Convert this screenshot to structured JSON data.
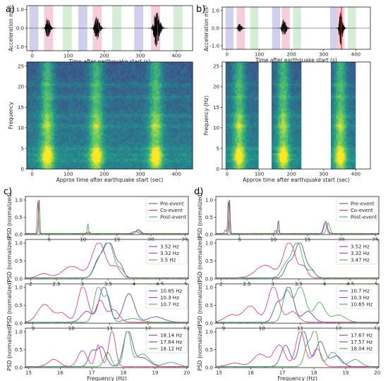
{
  "panels": {
    "a": "a)",
    "b": "b)",
    "c": "c)",
    "d": "d)"
  },
  "colors": {
    "pre": "#4040c0",
    "co": "#e0306a",
    "post": "#3aa83a",
    "pre_band": "#c8c8ea",
    "co_band": "#f4c4d4",
    "post_band": "#cdeacd",
    "vline": "#cc1111"
  },
  "chart_data": [
    {
      "id": "a-wave",
      "type": "line",
      "xlabel": "Time after earthquake start (s)",
      "ylabel": "Acceleration m/s²",
      "xlim": [
        -15,
        445
      ],
      "ylim": [
        -1.2,
        1.2
      ],
      "xticks": [
        0,
        100,
        200,
        300,
        400
      ],
      "yticks": [
        -1,
        0,
        1
      ],
      "windows": [
        {
          "kind": "pre",
          "x0": -8,
          "x1": 17
        },
        {
          "kind": "co",
          "x0": 33,
          "x1": 58
        },
        {
          "kind": "post",
          "x0": 85,
          "x1": 110
        },
        {
          "kind": "pre",
          "x0": 128,
          "x1": 153
        },
        {
          "kind": "co",
          "x0": 168,
          "x1": 193
        },
        {
          "kind": "post",
          "x0": 222,
          "x1": 247
        },
        {
          "kind": "pre",
          "x0": 283,
          "x1": 308
        },
        {
          "kind": "co",
          "x0": 330,
          "x1": 355
        },
        {
          "kind": "post",
          "x0": 392,
          "x1": 417
        }
      ],
      "bursts": [
        {
          "center": 42,
          "width": 10,
          "amp": 0.55
        },
        {
          "center": 178,
          "width": 11,
          "amp": 0.7
        },
        {
          "center": 343,
          "width": 14,
          "amp": 1.0
        }
      ]
    },
    {
      "id": "a-spec",
      "type": "heatmap",
      "xlabel": "Approx time after earthquake start (sec)",
      "ylabel": "Frequency",
      "xlim": [
        -15,
        445
      ],
      "ylim": [
        0,
        26
      ],
      "xticks": [
        0,
        100,
        200,
        300,
        400
      ],
      "yticks": [
        0,
        5,
        10,
        15,
        20,
        25
      ],
      "bright_times": [
        42,
        178,
        343
      ]
    },
    {
      "id": "b-wave",
      "type": "line",
      "xlabel": "Time after earthquake start (s)",
      "ylabel": "Acceleration m/s²",
      "xlim": [
        -15,
        445
      ],
      "ylim": [
        -1.2,
        1.2
      ],
      "xticks": [
        0,
        100,
        200,
        300,
        400
      ],
      "yticks": [
        -1,
        0,
        1
      ],
      "windows": [
        {
          "kind": "pre",
          "x0": -5,
          "x1": 20
        },
        {
          "kind": "co",
          "x0": 30,
          "x1": 55
        },
        {
          "kind": "post",
          "x0": 72,
          "x1": 97
        },
        {
          "kind": "pre",
          "x0": 140,
          "x1": 165
        },
        {
          "kind": "co",
          "x0": 170,
          "x1": 195
        },
        {
          "kind": "post",
          "x0": 205,
          "x1": 230
        },
        {
          "kind": "pre",
          "x0": 320,
          "x1": 345
        },
        {
          "kind": "co",
          "x0": 340,
          "x1": 365
        },
        {
          "kind": "post",
          "x0": 375,
          "x1": 400
        }
      ],
      "vline": 355,
      "bursts": [
        {
          "center": 38,
          "width": 10,
          "amp": 0.25
        },
        {
          "center": 175,
          "width": 11,
          "amp": 0.5
        },
        {
          "center": 352,
          "width": 9,
          "amp": 1.0
        }
      ]
    },
    {
      "id": "b-spec",
      "type": "heatmap",
      "xlabel": "Approx time after earthquake start (sec)",
      "ylabel": "Frequency (Hz)",
      "xlim": [
        -15,
        445
      ],
      "ylim": [
        0,
        26
      ],
      "xticks": [
        0,
        100,
        200,
        300,
        400
      ],
      "yticks": [
        0,
        5,
        10,
        15,
        20,
        25
      ],
      "segments": [
        [
          -5,
          95,
          38
        ],
        [
          140,
          230,
          175
        ],
        [
          320,
          400,
          352
        ]
      ]
    },
    {
      "id": "c1",
      "type": "line",
      "ylabel": "PSD (normalized)",
      "xlim": [
        1.5,
        25.5
      ],
      "ylim": [
        0,
        1.1
      ],
      "xticks": [
        5,
        10,
        15,
        20,
        25
      ],
      "yticks": [
        0.0,
        0.5,
        1.0
      ],
      "legend": [
        "Pre-event",
        "Co-event",
        "Post-event"
      ],
      "series": [
        {
          "kind": "pre",
          "peaks": [
            [
              3.52,
              1.0,
              0.12
            ],
            [
              10.85,
              0.05,
              0.2
            ],
            [
              18.14,
              0.12,
              0.45
            ]
          ]
        },
        {
          "kind": "co",
          "peaks": [
            [
              3.32,
              1.0,
              0.12
            ],
            [
              10.3,
              0.02,
              0.2
            ],
            [
              17.64,
              0.07,
              0.5
            ]
          ]
        },
        {
          "kind": "post",
          "peaks": [
            [
              3.5,
              0.9,
              0.12
            ],
            [
              10.7,
              0.3,
              0.12
            ],
            [
              18.12,
              0.08,
              0.45
            ]
          ]
        }
      ]
    },
    {
      "id": "c2",
      "type": "line",
      "ylabel": "PSD (normalized)",
      "xlim": [
        1.9,
        5.05
      ],
      "ylim": [
        0,
        1.1
      ],
      "xticks": [
        2.0,
        2.5,
        3.0,
        3.5,
        4.0,
        4.5,
        5.0
      ],
      "yticks": [
        0.0,
        0.5,
        1.0
      ],
      "legend": [
        "3.52 Hz",
        "3.32 Hz",
        "3.5 Hz"
      ],
      "series": [
        {
          "kind": "pre",
          "peaks": [
            [
              3.52,
              1.0,
              0.16
            ],
            [
              3.3,
              0.4,
              0.12
            ],
            [
              3.75,
              0.25,
              0.08
            ]
          ]
        },
        {
          "kind": "co",
          "peaks": [
            [
              3.32,
              1.0,
              0.18
            ],
            [
              2.8,
              0.32,
              0.25
            ],
            [
              2.25,
              0.12,
              0.15
            ],
            [
              3.65,
              0.3,
              0.12
            ]
          ]
        },
        {
          "kind": "post",
          "peaks": [
            [
              3.5,
              1.0,
              0.15
            ],
            [
              3.3,
              0.35,
              0.12
            ],
            [
              3.75,
              0.2,
              0.1
            ]
          ]
        }
      ]
    },
    {
      "id": "c3",
      "type": "line",
      "ylabel": "PSD (normalized)",
      "xlim": [
        8.8,
        13.05
      ],
      "ylim": [
        0,
        1.1
      ],
      "xticks": [
        9,
        10,
        11,
        12,
        13
      ],
      "yticks": [
        0.0,
        0.5,
        1.0
      ],
      "legend": [
        "10.85 Hz",
        "10.3 Hz",
        "10.7 Hz"
      ],
      "series": [
        {
          "kind": "pre",
          "peaks": [
            [
              10.85,
              1.0,
              0.18
            ],
            [
              11.5,
              0.8,
              0.2
            ],
            [
              10.4,
              0.3,
              0.2
            ],
            [
              12.2,
              0.15,
              0.3
            ]
          ]
        },
        {
          "kind": "co",
          "peaks": [
            [
              10.3,
              1.0,
              0.18
            ],
            [
              9.3,
              0.5,
              0.25
            ],
            [
              9.75,
              0.25,
              0.2
            ],
            [
              10.75,
              0.6,
              0.15
            ],
            [
              11.1,
              0.35,
              0.2
            ]
          ]
        },
        {
          "kind": "post",
          "peaks": [
            [
              10.7,
              1.0,
              0.15
            ],
            [
              10.95,
              0.7,
              0.12
            ],
            [
              11.6,
              0.1,
              0.3
            ]
          ]
        }
      ]
    },
    {
      "id": "c4",
      "type": "line",
      "ylabel": "PSD (normalized)",
      "xlabel": "Frequency (Hz)",
      "xlim": [
        14.9,
        20.05
      ],
      "ylim": [
        0,
        1.1
      ],
      "xticks": [
        15,
        16,
        17,
        18,
        19,
        20
      ],
      "yticks": [
        0.0,
        0.5,
        1.0
      ],
      "legend": [
        "18.14 Hz",
        "17.64 Hz",
        "18.12 Hz"
      ],
      "series": [
        {
          "kind": "pre",
          "peaks": [
            [
              18.14,
              1.0,
              0.2
            ],
            [
              17.3,
              0.55,
              0.2
            ],
            [
              17.0,
              0.4,
              0.15
            ],
            [
              18.6,
              0.25,
              0.3
            ]
          ]
        },
        {
          "kind": "co",
          "peaks": [
            [
              17.64,
              1.0,
              0.15
            ],
            [
              17.2,
              0.6,
              0.12
            ],
            [
              16.7,
              0.45,
              0.2
            ],
            [
              15.8,
              0.2,
              0.25
            ]
          ]
        },
        {
          "kind": "post",
          "peaks": [
            [
              18.12,
              1.0,
              0.15
            ],
            [
              17.5,
              0.4,
              0.15
            ],
            [
              18.6,
              0.35,
              0.3
            ],
            [
              19.5,
              0.12,
              0.3
            ]
          ]
        }
      ]
    },
    {
      "id": "d1",
      "type": "line",
      "ylabel": "PSD (normalized)",
      "xlim": [
        1.5,
        25.5
      ],
      "ylim": [
        0,
        1.1
      ],
      "xticks": [
        5,
        10,
        15,
        20,
        25
      ],
      "yticks": [
        0.0,
        0.5,
        1.0
      ],
      "legend": [
        "Pre-event",
        "Co-event",
        "Post-event"
      ],
      "series": [
        {
          "kind": "pre",
          "peaks": [
            [
              3.52,
              1.0,
              0.12
            ],
            [
              10.7,
              0.4,
              0.12
            ],
            [
              17.67,
              0.35,
              0.35
            ]
          ]
        },
        {
          "kind": "co",
          "peaks": [
            [
              3.32,
              1.0,
              0.12
            ],
            [
              2.9,
              0.1,
              0.2
            ],
            [
              10.3,
              0.1,
              0.2
            ],
            [
              17.57,
              0.3,
              0.35
            ]
          ]
        },
        {
          "kind": "post",
          "peaks": [
            [
              3.47,
              0.95,
              0.12
            ],
            [
              10.65,
              0.1,
              0.2
            ],
            [
              18.04,
              0.3,
              0.35
            ]
          ]
        }
      ]
    },
    {
      "id": "d2",
      "type": "line",
      "ylabel": "PSD (normalized)",
      "xlim": [
        1.9,
        5.05
      ],
      "ylim": [
        0,
        1.1
      ],
      "xticks": [
        2.0,
        2.5,
        3.0,
        3.5,
        4.0,
        4.5,
        5.0
      ],
      "yticks": [
        0.0,
        0.5,
        1.0
      ],
      "legend": [
        "3.52 Hz",
        "3.32 Hz",
        "3.47 Hz"
      ],
      "series": [
        {
          "kind": "pre",
          "peaks": [
            [
              3.52,
              1.0,
              0.14
            ],
            [
              3.3,
              0.35,
              0.1
            ],
            [
              3.75,
              0.2,
              0.1
            ]
          ]
        },
        {
          "kind": "co",
          "peaks": [
            [
              3.32,
              1.0,
              0.16
            ],
            [
              2.85,
              0.35,
              0.25
            ],
            [
              3.6,
              0.3,
              0.1
            ]
          ]
        },
        {
          "kind": "post",
          "peaks": [
            [
              3.47,
              1.0,
              0.14
            ],
            [
              3.25,
              0.35,
              0.12
            ],
            [
              3.75,
              0.2,
              0.1
            ]
          ]
        }
      ]
    },
    {
      "id": "d3",
      "type": "line",
      "ylabel": "PSD (normalized)",
      "xlim": [
        8.8,
        13.05
      ],
      "ylim": [
        0,
        1.1
      ],
      "xticks": [
        9,
        10,
        11,
        12,
        13
      ],
      "yticks": [
        0.0,
        0.5,
        1.0
      ],
      "legend": [
        "10.7 Hz",
        "10.3 Hz",
        "10.65 Hz"
      ],
      "series": [
        {
          "kind": "pre",
          "peaks": [
            [
              10.7,
              1.0,
              0.18
            ],
            [
              10.4,
              0.5,
              0.15
            ],
            [
              11.2,
              0.3,
              0.2
            ]
          ]
        },
        {
          "kind": "co",
          "peaks": [
            [
              10.3,
              1.0,
              0.2
            ],
            [
              9.7,
              0.45,
              0.25
            ],
            [
              9.2,
              0.2,
              0.25
            ],
            [
              10.8,
              0.3,
              0.2
            ]
          ]
        },
        {
          "kind": "post",
          "peaks": [
            [
              10.65,
              0.85,
              0.15
            ],
            [
              11.0,
              1.0,
              0.2
            ],
            [
              11.5,
              0.55,
              0.2
            ],
            [
              12.0,
              0.2,
              0.25
            ]
          ]
        }
      ]
    },
    {
      "id": "d4",
      "type": "line",
      "ylabel": "PSD (normalized)",
      "xlabel": "Frequency (Hz)",
      "xlim": [
        14.9,
        20.05
      ],
      "ylim": [
        0,
        1.1
      ],
      "xticks": [
        15,
        16,
        17,
        18,
        19,
        20
      ],
      "yticks": [
        0.0,
        0.5,
        1.0
      ],
      "legend": [
        "17.67 Hz",
        "17.57 Hz",
        "18.04 Hz"
      ],
      "series": [
        {
          "kind": "pre",
          "peaks": [
            [
              17.67,
              1.0,
              0.2
            ],
            [
              17.1,
              0.6,
              0.2
            ],
            [
              18.2,
              0.7,
              0.2
            ],
            [
              18.7,
              0.3,
              0.25
            ]
          ]
        },
        {
          "kind": "co",
          "peaks": [
            [
              17.57,
              1.0,
              0.2
            ],
            [
              16.9,
              0.6,
              0.25
            ],
            [
              16.3,
              0.35,
              0.3
            ],
            [
              18.1,
              0.5,
              0.2
            ],
            [
              15.5,
              0.1,
              0.3
            ]
          ]
        },
        {
          "kind": "post",
          "peaks": [
            [
              18.04,
              1.0,
              0.15
            ],
            [
              17.8,
              0.6,
              0.15
            ],
            [
              18.6,
              0.4,
              0.25
            ],
            [
              19.3,
              0.2,
              0.25
            ]
          ]
        }
      ]
    }
  ]
}
